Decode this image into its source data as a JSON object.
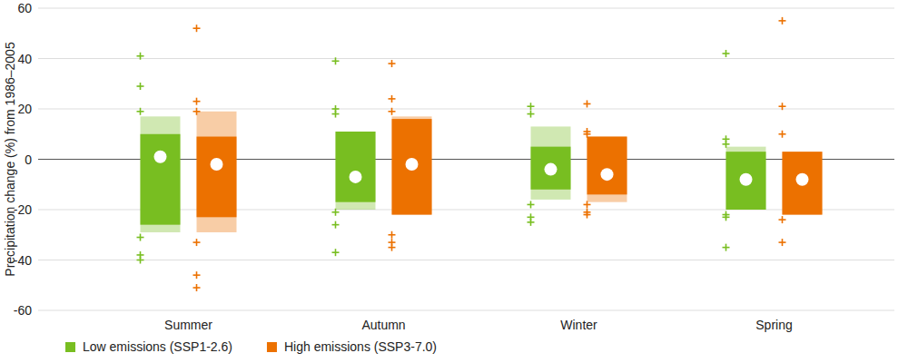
{
  "chart_data": {
    "type": "box",
    "y_label": "Precipitation change (%) from 1986–2005",
    "categories": [
      "Summer",
      "Autumn",
      "Winter",
      "Spring"
    ],
    "ylim": [
      -60,
      60
    ],
    "yticks": [
      -60,
      -40,
      -20,
      0,
      20,
      40,
      60
    ],
    "grid": true,
    "legend": "bottom-left",
    "series": [
      {
        "name": "Low emissions (SSP1-2.6)",
        "color": "#78be21",
        "marker": "plus",
        "values": [
          1,
          -7,
          -4,
          -8
        ],
        "box_low": [
          -26,
          -17,
          -12,
          -20
        ],
        "box_high": [
          10,
          11,
          5,
          3
        ],
        "range_low": [
          -29,
          -20,
          -16,
          -20
        ],
        "range_high": [
          17,
          11,
          13,
          5
        ],
        "outliers": [
          [
            41,
            29,
            19,
            -31,
            -38,
            -40
          ],
          [
            39,
            20,
            18,
            -21,
            -26,
            -37
          ],
          [
            21,
            18,
            -18,
            -23,
            -25
          ],
          [
            42,
            8,
            6,
            -22,
            -23,
            -35
          ]
        ]
      },
      {
        "name": "High emissions (SSP3-7.0)",
        "color": "#ec7100",
        "marker": "plus",
        "values": [
          -2,
          -2,
          -6,
          -8
        ],
        "box_low": [
          -23,
          -22,
          -14,
          -22
        ],
        "box_high": [
          9,
          16,
          9,
          3
        ],
        "range_low": [
          -29,
          -22,
          -17,
          -22
        ],
        "range_high": [
          19,
          17,
          9,
          3
        ],
        "outliers": [
          [
            52,
            23,
            19,
            -33,
            -46,
            -51
          ],
          [
            38,
            24,
            19,
            -30,
            -33,
            -35
          ],
          [
            22,
            11,
            10,
            -18,
            -21,
            -22
          ],
          [
            55,
            21,
            10,
            -24,
            -33
          ]
        ]
      }
    ]
  }
}
